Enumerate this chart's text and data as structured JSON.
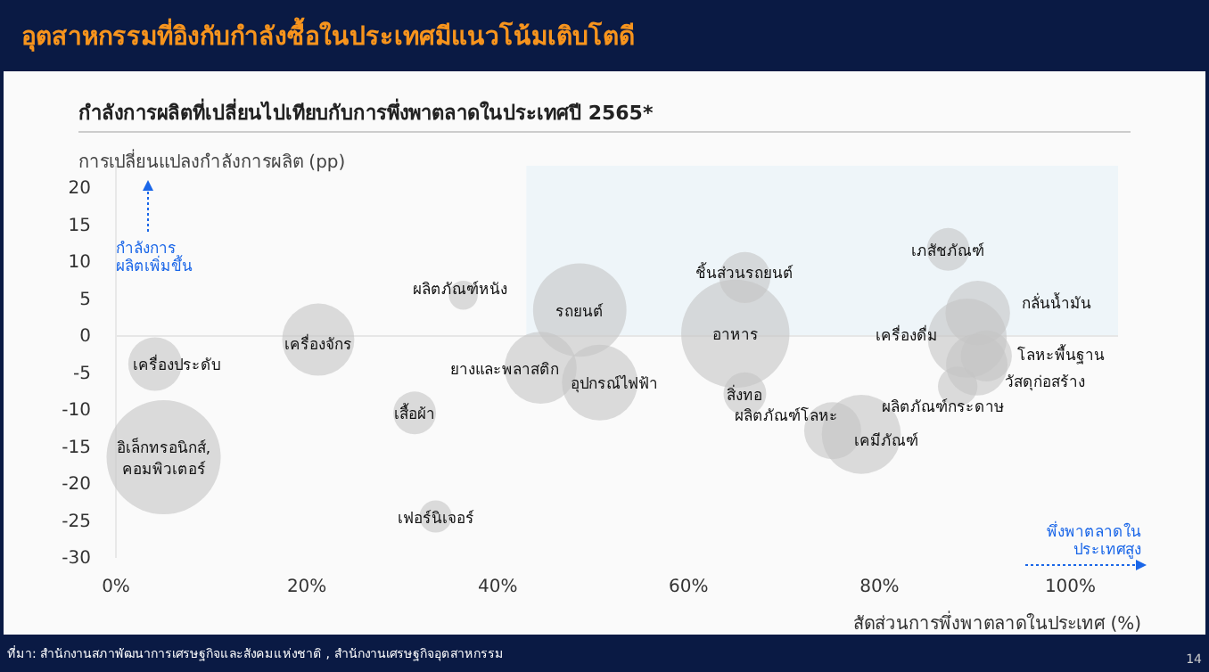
{
  "chart_data": {
    "type": "bubble",
    "title": "อุตสาหกรรมที่อิงกับกำลังซื้อในประเทศมีแนวโน้มเติบโตดี",
    "subtitle": "กำลังการผลิตที่เปลี่ยนไปเทียบกับการพึ่งพาตลาดในประเทศปี 2565*",
    "xlabel": "สัดส่วนการพึ่งพาตลาดในประเทศ (%)",
    "ylabel": "การเปลี่ยนแปลงกำลังการผลิต (pp)",
    "x": [
      4.1,
      5.0,
      21.2,
      36.4,
      31.3,
      33.5,
      48.6,
      44.5,
      50.7,
      65.9,
      64.9,
      65.9,
      75.1,
      78.1,
      87.2,
      90.3,
      89.2,
      91.2,
      90.2,
      88.2
    ],
    "values": [
      -3.8,
      -16.4,
      -0.5,
      5.5,
      -10.4,
      -24.4,
      3.5,
      -4.3,
      -6.3,
      7.9,
      0.3,
      -7.8,
      -12.8,
      -13.3,
      11.7,
      3.1,
      -0.3,
      -2.7,
      -3.9,
      -6.8
    ],
    "sizes": [
      0.22,
      1,
      0.4,
      0.064,
      0.14,
      0.08,
      0.67,
      0.4,
      0.44,
      0.2,
      0.9,
      0.14,
      0.25,
      0.48,
      0.14,
      0.32,
      0.48,
      0.2,
      0.29,
      0.12
    ],
    "color": "#c4c4c4",
    "xlim": [
      0,
      105
    ],
    "xticks": [
      {
        "value": 0,
        "label": "0%"
      },
      {
        "value": 20,
        "label": "20%"
      },
      {
        "value": 40,
        "label": "40%"
      },
      {
        "value": 60,
        "label": "60%"
      },
      {
        "value": 80,
        "label": "80%"
      },
      {
        "value": 100,
        "label": "100%"
      }
    ],
    "ylim": [
      -30,
      23
    ],
    "yticks": [
      -30,
      -25,
      -20,
      -15,
      -10,
      -5,
      0,
      5,
      10,
      15,
      20
    ],
    "grid": false,
    "ref_lines": [
      {
        "axis": "y",
        "value": 0,
        "color": "#e6e6e6"
      }
    ],
    "bands": [
      {
        "axis": "x",
        "from": 43,
        "to": 105,
        "color": "#eef5f9"
      }
    ],
    "annotations": [
      {
        "text": "เครื่องประดับ",
        "x": 4.1,
        "y": -3.8
      },
      {
        "text": "อิเล็กทรอนิกส์,\nคอมพิวเตอร์",
        "x": 5.0,
        "y": -16.4
      },
      {
        "text": "เครื่องจักร",
        "x": 21.2,
        "y": -0.5
      },
      {
        "text": "ผลิตภัณฑ์หนัง",
        "x": 36.4,
        "y": 5.5
      },
      {
        "text": "เสื้อผ้า",
        "x": 31.3,
        "y": -10.4
      },
      {
        "text": "เฟอร์นิเจอร์",
        "x": 33.5,
        "y": -24.4
      },
      {
        "text": "รถยนต์",
        "x": 48.6,
        "y": 3.5
      },
      {
        "text": "ยางและพลาสติก",
        "x": 44.5,
        "y": -4.3
      },
      {
        "text": "อุปกรณ์ไฟฟ้า",
        "x": 50.7,
        "y": -6.3
      },
      {
        "text": "ชิ้นส่วนรถยนต์",
        "x": 65.9,
        "y": 7.9
      },
      {
        "text": "อาหาร",
        "x": 64.9,
        "y": 0.3
      },
      {
        "text": "สิ่งทอ",
        "x": 65.9,
        "y": -7.8
      },
      {
        "text": "ผลิตภัณฑ์โลหะ",
        "x": 75.1,
        "y": -12.8
      },
      {
        "text": "เคมีภัณฑ์",
        "x": 78.1,
        "y": -13.3
      },
      {
        "text": "เภสัชภัณฑ์",
        "x": 87.2,
        "y": 11.7
      },
      {
        "text": "กลั่นน้ำมัน",
        "x": 90.3,
        "y": 3.1
      },
      {
        "text": "เครื่องดื่ม",
        "x": 89.2,
        "y": -0.3
      },
      {
        "text": "โลหะพื้นฐาน",
        "x": 91.2,
        "y": -2.7
      },
      {
        "text": "วัสดุก่อสร้าง",
        "x": 90.2,
        "y": -3.9
      },
      {
        "text": "ผลิตภัณฑ์กระดาษ",
        "x": 88.2,
        "y": -6.8
      },
      "กำลังการ\nผลิตเพิ่มขึ้น",
      "พึ่งพาตลาดใน\nประเทศสูง",
      "ที่มา: สำนักงานสภาพัฒนาการเศรษฐกิจและสังคมแห่งชาติ , สำนักงานเศรษฐกิจอุตสาหกรรม",
      "14"
    ]
  }
}
